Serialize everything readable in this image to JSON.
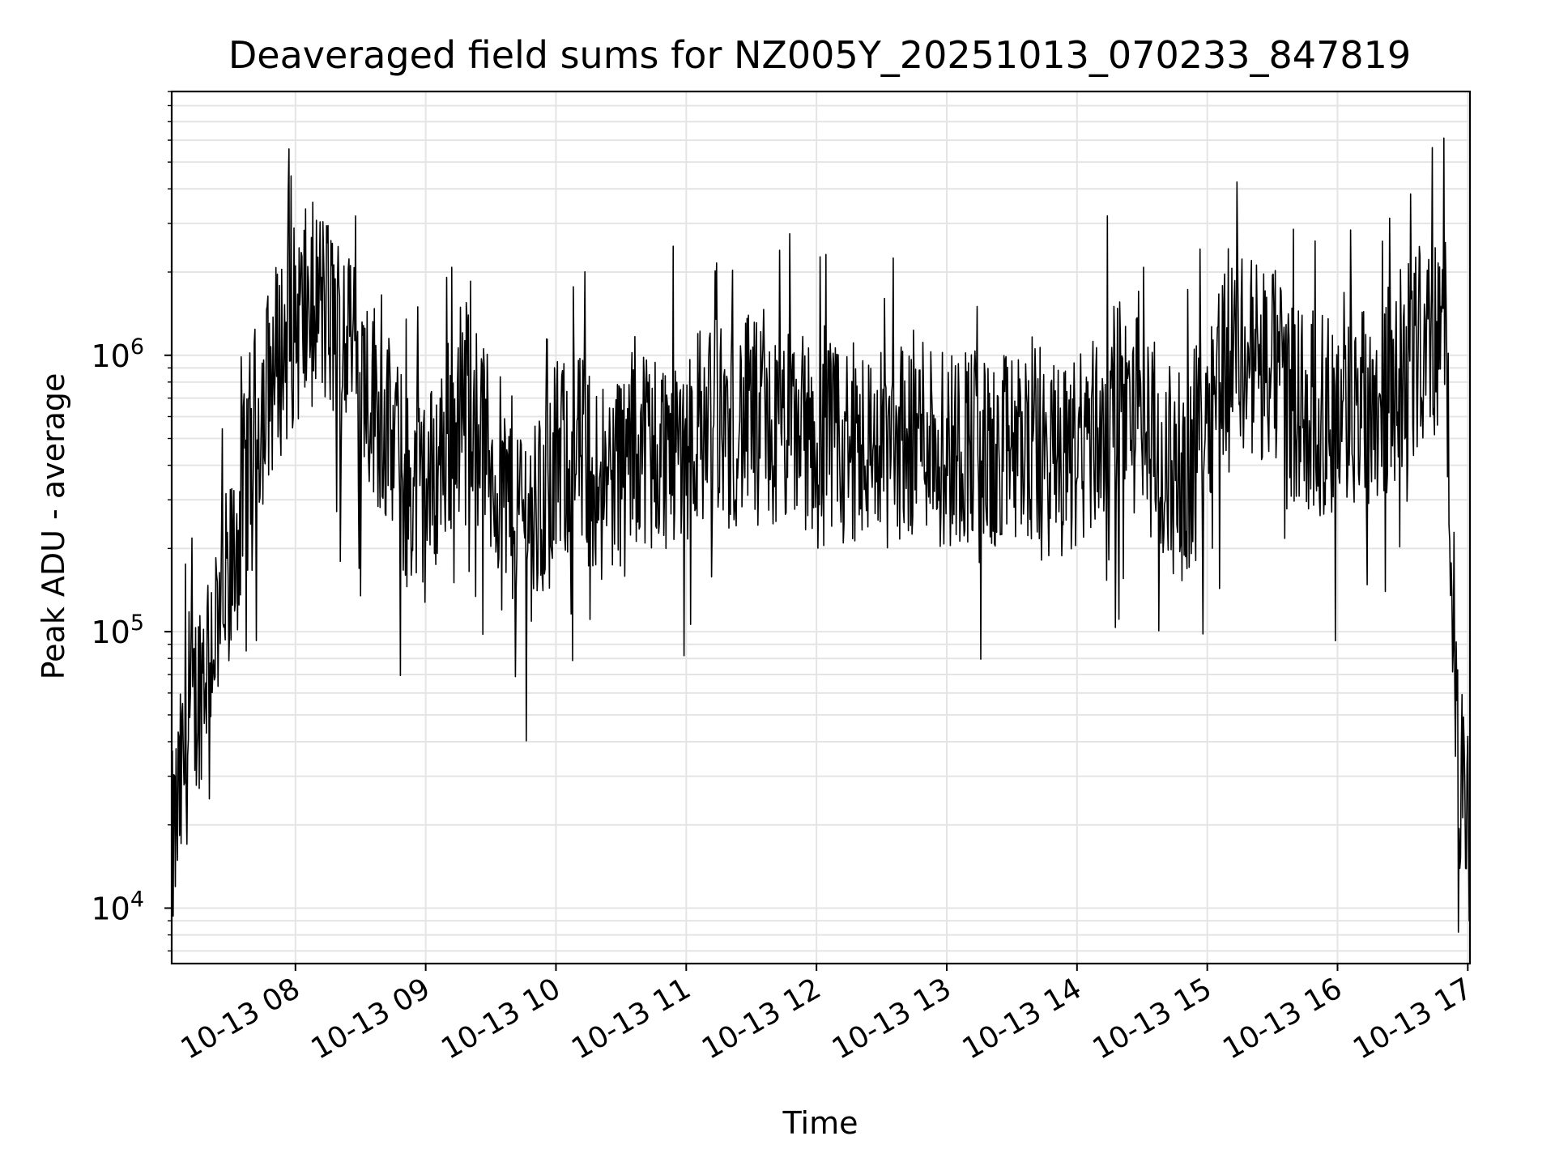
{
  "chart_data": {
    "type": "line",
    "title": "Deaveraged field sums for NZ005Y_20251013_070233_847819",
    "xlabel": "Time",
    "ylabel": "Peak ADU - average",
    "yscale": "log",
    "ylim": [
      6300,
      9000000
    ],
    "xlim": [
      "10-13 07:03",
      "10-13 17:01"
    ],
    "grid": true,
    "legend": "none",
    "line_color": "#000000",
    "x_ticks": [
      "10-13 08",
      "10-13 09",
      "10-13 10",
      "10-13 11",
      "10-13 12",
      "10-13 13",
      "10-13 14",
      "10-13 15",
      "10-13 16",
      "10-13 17"
    ],
    "y_ticks": [
      {
        "value": 10000,
        "base": "10",
        "exp": "4"
      },
      {
        "value": 100000,
        "base": "10",
        "exp": "5"
      },
      {
        "value": 1000000,
        "base": "10",
        "exp": "6"
      }
    ],
    "series": [
      {
        "x": [
          "10-13 07:03",
          "10-13 07:10",
          "10-13 07:20",
          "10-13 07:30",
          "10-13 07:40",
          "10-13 07:50",
          "10-13 08:00",
          "10-13 08:10",
          "10-13 08:20",
          "10-13 08:30",
          "10-13 08:40",
          "10-13 08:50",
          "10-13 09:00",
          "10-13 09:10",
          "10-13 09:20",
          "10-13 09:30",
          "10-13 09:40",
          "10-13 09:50",
          "10-13 10:00",
          "10-13 10:10",
          "10-13 10:20",
          "10-13 10:30",
          "10-13 10:40",
          "10-13 10:50",
          "10-13 11:00",
          "10-13 11:10",
          "10-13 11:20",
          "10-13 11:30",
          "10-13 11:40",
          "10-13 11:50",
          "10-13 12:00",
          "10-13 12:10",
          "10-13 12:20",
          "10-13 12:30",
          "10-13 12:40",
          "10-13 12:50",
          "10-13 13:00",
          "10-13 13:10",
          "10-13 13:20",
          "10-13 13:30",
          "10-13 13:40",
          "10-13 13:50",
          "10-13 14:00",
          "10-13 14:10",
          "10-13 14:20",
          "10-13 14:30",
          "10-13 14:40",
          "10-13 14:50",
          "10-13 15:00",
          "10-13 15:10",
          "10-13 15:20",
          "10-13 15:30",
          "10-13 15:40",
          "10-13 15:50",
          "10-13 16:00",
          "10-13 16:10",
          "10-13 16:20",
          "10-13 16:30",
          "10-13 16:40",
          "10-13 16:50",
          "10-13 16:55",
          "10-13 17:01"
        ],
        "y": [
          15000,
          40000,
          90000,
          150000,
          500000,
          900000,
          1300000,
          1600000,
          1200000,
          900000,
          600000,
          350000,
          300000,
          500000,
          800000,
          400000,
          300000,
          250000,
          400000,
          450000,
          350000,
          400000,
          500000,
          450000,
          500000,
          600000,
          550000,
          600000,
          500000,
          550000,
          500000,
          450000,
          500000,
          450000,
          500000,
          550000,
          450000,
          500000,
          400000,
          450000,
          500000,
          400000,
          450000,
          550000,
          700000,
          600000,
          400000,
          350000,
          700000,
          1100000,
          1000000,
          900000,
          700000,
          600000,
          600000,
          650000,
          700000,
          900000,
          1100000,
          1200000,
          40000,
          12000
        ]
      }
    ]
  }
}
